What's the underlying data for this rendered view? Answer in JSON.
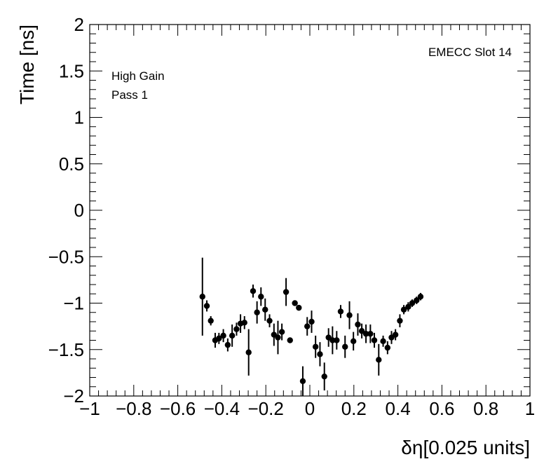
{
  "chart_data": {
    "type": "scatter",
    "title": "",
    "xlabel": "δη[0.025 units]",
    "ylabel": "Time [ns]",
    "xlim": [
      -1,
      1
    ],
    "ylim": [
      -2,
      2
    ],
    "x_ticks": [
      "−1",
      "−0.8",
      "−0.6",
      "−0.4",
      "−0.2",
      "0",
      "0.2",
      "0.4",
      "0.6",
      "0.8",
      "1"
    ],
    "y_ticks": [
      "2",
      "1.5",
      "1",
      "0.5",
      "0",
      "−0.5",
      "−1",
      "−1.5",
      "−2"
    ],
    "annotations": {
      "top_right": "EMECC Slot 14",
      "line1": "High Gain",
      "line2": "Pass 1"
    },
    "grid": false,
    "marker_color": "#000000",
    "points": [
      {
        "x": -0.488,
        "y": -0.93,
        "err": 0.42
      },
      {
        "x": -0.468,
        "y": -1.03,
        "err": 0.06
      },
      {
        "x": -0.45,
        "y": -1.19,
        "err": 0.05
      },
      {
        "x": -0.43,
        "y": -1.4,
        "err": 0.08
      },
      {
        "x": -0.413,
        "y": -1.38,
        "err": 0.06
      },
      {
        "x": -0.393,
        "y": -1.35,
        "err": 0.07
      },
      {
        "x": -0.373,
        "y": -1.45,
        "err": 0.07
      },
      {
        "x": -0.353,
        "y": -1.35,
        "err": 0.12
      },
      {
        "x": -0.333,
        "y": -1.28,
        "err": 0.07
      },
      {
        "x": -0.315,
        "y": -1.22,
        "err": 0.1
      },
      {
        "x": -0.297,
        "y": -1.21,
        "err": 0.07
      },
      {
        "x": -0.278,
        "y": -1.53,
        "err": 0.25
      },
      {
        "x": -0.258,
        "y": -0.87,
        "err": 0.07
      },
      {
        "x": -0.24,
        "y": -1.1,
        "err": 0.12
      },
      {
        "x": -0.222,
        "y": -0.93,
        "err": 0.1
      },
      {
        "x": -0.203,
        "y": -1.07,
        "err": 0.12
      },
      {
        "x": -0.183,
        "y": -1.19,
        "err": 0.07
      },
      {
        "x": -0.163,
        "y": -1.34,
        "err": 0.12
      },
      {
        "x": -0.145,
        "y": -1.37,
        "err": 0.18
      },
      {
        "x": -0.127,
        "y": -1.31,
        "err": 0.09
      },
      {
        "x": -0.108,
        "y": -0.88,
        "err": 0.15
      },
      {
        "x": -0.09,
        "y": -1.4,
        "err": 0.03
      },
      {
        "x": -0.068,
        "y": -1.0,
        "err": 0.03
      },
      {
        "x": -0.05,
        "y": -1.05,
        "err": 0.03
      },
      {
        "x": -0.032,
        "y": -1.84,
        "err": 0.16
      },
      {
        "x": -0.012,
        "y": -1.25,
        "err": 0.1
      },
      {
        "x": 0.008,
        "y": -1.2,
        "err": 0.12
      },
      {
        "x": 0.026,
        "y": -1.47,
        "err": 0.12
      },
      {
        "x": 0.046,
        "y": -1.55,
        "err": 0.13
      },
      {
        "x": 0.066,
        "y": -1.79,
        "err": 0.15
      },
      {
        "x": 0.085,
        "y": -1.37,
        "err": 0.1
      },
      {
        "x": 0.103,
        "y": -1.4,
        "err": 0.15
      },
      {
        "x": 0.122,
        "y": -1.4,
        "err": 0.1
      },
      {
        "x": 0.14,
        "y": -1.09,
        "err": 0.07
      },
      {
        "x": 0.16,
        "y": -1.47,
        "err": 0.12
      },
      {
        "x": 0.18,
        "y": -1.13,
        "err": 0.15
      },
      {
        "x": 0.198,
        "y": -1.41,
        "err": 0.1
      },
      {
        "x": 0.218,
        "y": -1.23,
        "err": 0.12
      },
      {
        "x": 0.236,
        "y": -1.3,
        "err": 0.08
      },
      {
        "x": 0.255,
        "y": -1.33,
        "err": 0.1
      },
      {
        "x": 0.275,
        "y": -1.33,
        "err": 0.1
      },
      {
        "x": 0.293,
        "y": -1.4,
        "err": 0.08
      },
      {
        "x": 0.313,
        "y": -1.61,
        "err": 0.17
      },
      {
        "x": 0.333,
        "y": -1.41,
        "err": 0.06
      },
      {
        "x": 0.353,
        "y": -1.48,
        "err": 0.07
      },
      {
        "x": 0.371,
        "y": -1.37,
        "err": 0.07
      },
      {
        "x": 0.389,
        "y": -1.34,
        "err": 0.06
      },
      {
        "x": 0.409,
        "y": -1.19,
        "err": 0.07
      },
      {
        "x": 0.427,
        "y": -1.07,
        "err": 0.05
      },
      {
        "x": 0.447,
        "y": -1.04,
        "err": 0.05
      },
      {
        "x": 0.465,
        "y": -1.0,
        "err": 0.04
      },
      {
        "x": 0.485,
        "y": -0.97,
        "err": 0.04
      },
      {
        "x": 0.503,
        "y": -0.93,
        "err": 0.04
      }
    ]
  }
}
